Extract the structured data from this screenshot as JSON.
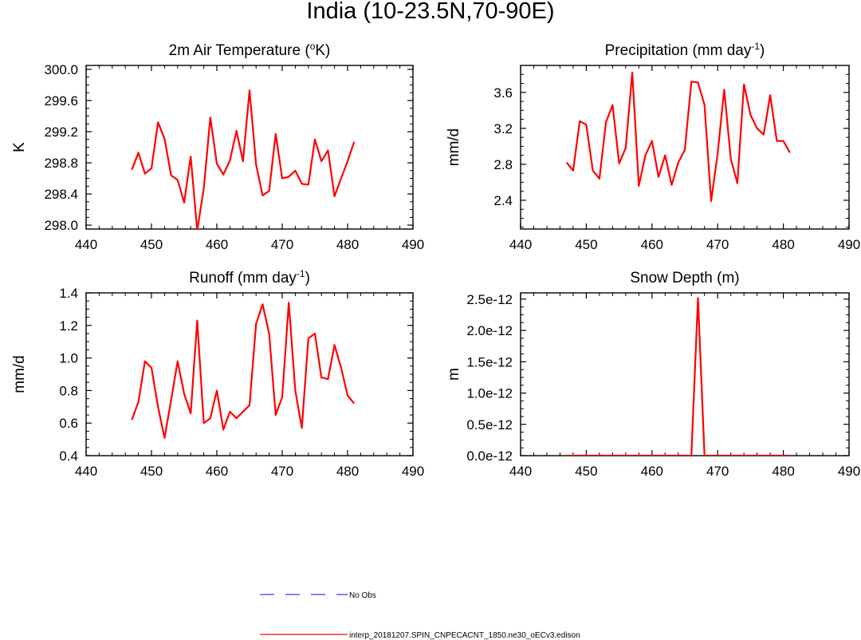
{
  "figure": {
    "title": "India (10-23.5N,70-90E)"
  },
  "legend": {
    "entries": [
      {
        "label": "No Obs",
        "color": "#3a3aff",
        "style": "dashed"
      },
      {
        "label": "interp_20181207.SPIN_CNPECACNT_1850.ne30_oECv3.edison",
        "color": "#ff0000",
        "style": "solid"
      }
    ]
  },
  "chart_data": [
    {
      "type": "line",
      "title_parts": [
        "2m Air Temperature (",
        "o",
        "K)"
      ],
      "ylabel": "K",
      "xlim": [
        440,
        490
      ],
      "xticks": [
        440,
        450,
        460,
        470,
        480,
        490
      ],
      "ylim": [
        297.95,
        300.05
      ],
      "yticks": [
        298.0,
        298.4,
        298.8,
        299.2,
        299.6,
        300.0
      ],
      "ytick_labels": [
        "298.0",
        "298.4",
        "298.8",
        "299.2",
        "299.6",
        "300.0"
      ],
      "x": [
        447,
        448,
        449,
        450,
        451,
        452,
        453,
        454,
        455,
        456,
        457,
        458,
        459,
        460,
        461,
        462,
        463,
        464,
        465,
        466,
        467,
        468,
        469,
        470,
        471,
        472,
        473,
        474,
        475,
        476,
        477,
        478,
        479,
        480,
        481
      ],
      "series": [
        {
          "name": "interp_20181207.SPIN_CNPECACNT_1850.ne30_oECv3.edison",
          "color": "#ff0000",
          "values": [
            298.71,
            298.93,
            298.66,
            298.73,
            299.32,
            299.11,
            298.64,
            298.58,
            298.29,
            298.88,
            297.93,
            298.47,
            299.38,
            298.79,
            298.65,
            298.83,
            299.21,
            298.82,
            299.73,
            298.78,
            298.38,
            298.44,
            299.17,
            298.6,
            298.62,
            298.7,
            298.53,
            298.52,
            299.1,
            298.82,
            298.96,
            298.37,
            298.6,
            298.82,
            299.07
          ]
        }
      ]
    },
    {
      "type": "line",
      "title_parts": [
        "Precipitation (mm day",
        "-1",
        ")"
      ],
      "ylabel": "mm/d",
      "xlim": [
        440,
        490
      ],
      "xticks": [
        440,
        450,
        460,
        470,
        480,
        490
      ],
      "ylim": [
        2.08,
        3.9
      ],
      "yticks": [
        2.4,
        2.8,
        3.2,
        3.6
      ],
      "ytick_labels": [
        "2.4",
        "2.8",
        "3.2",
        "3.6"
      ],
      "x": [
        447,
        448,
        449,
        450,
        451,
        452,
        453,
        454,
        455,
        456,
        457,
        458,
        459,
        460,
        461,
        462,
        463,
        464,
        465,
        466,
        467,
        468,
        469,
        470,
        471,
        472,
        473,
        474,
        475,
        476,
        477,
        478,
        479,
        480,
        481
      ],
      "series": [
        {
          "name": "interp_20181207.SPIN_CNPECACNT_1850.ne30_oECv3.edison",
          "color": "#ff0000",
          "values": [
            2.82,
            2.73,
            3.28,
            3.24,
            2.73,
            2.64,
            3.27,
            3.46,
            2.81,
            2.98,
            3.82,
            2.56,
            2.9,
            3.06,
            2.66,
            2.9,
            2.57,
            2.82,
            2.96,
            3.72,
            3.71,
            3.46,
            2.39,
            2.92,
            3.63,
            2.86,
            2.59,
            3.69,
            3.35,
            3.2,
            3.13,
            3.57,
            3.06,
            3.06,
            2.93
          ]
        }
      ]
    },
    {
      "type": "line",
      "title_parts": [
        "Runoff (mm day",
        "-1",
        ")"
      ],
      "ylabel": "mm/d",
      "xlim": [
        440,
        490
      ],
      "xticks": [
        440,
        450,
        460,
        470,
        480,
        490
      ],
      "ylim": [
        0.4,
        1.4
      ],
      "yticks": [
        0.4,
        0.6,
        0.8,
        1.0,
        1.2,
        1.4
      ],
      "ytick_labels": [
        "0.4",
        "0.6",
        "0.8",
        "1.0",
        "1.2",
        "1.4"
      ],
      "x": [
        447,
        448,
        449,
        450,
        451,
        452,
        453,
        454,
        455,
        456,
        457,
        458,
        459,
        460,
        461,
        462,
        463,
        464,
        465,
        466,
        467,
        468,
        469,
        470,
        471,
        472,
        473,
        474,
        475,
        476,
        477,
        478,
        479,
        480,
        481
      ],
      "series": [
        {
          "name": "interp_20181207.SPIN_CNPECACNT_1850.ne30_oECv3.edison",
          "color": "#ff0000",
          "values": [
            0.62,
            0.73,
            0.98,
            0.94,
            0.7,
            0.51,
            0.74,
            0.98,
            0.78,
            0.66,
            1.23,
            0.6,
            0.63,
            0.8,
            0.56,
            0.67,
            0.63,
            0.67,
            0.71,
            1.21,
            1.33,
            1.15,
            0.65,
            0.76,
            1.34,
            0.8,
            0.57,
            1.12,
            1.15,
            0.88,
            0.87,
            1.08,
            0.94,
            0.77,
            0.72
          ]
        }
      ]
    },
    {
      "type": "line",
      "title_parts": [
        "Snow Depth (m)"
      ],
      "ylabel": "m",
      "xlim": [
        440,
        490
      ],
      "xticks": [
        440,
        450,
        460,
        470,
        480,
        490
      ],
      "ylim": [
        0,
        2.6e-12
      ],
      "yticks": [
        0,
        5e-13,
        1e-12,
        1.5e-12,
        2e-12,
        2.5e-12
      ],
      "ytick_labels": [
        "0.0e-12",
        "0.5e-12",
        "1.0e-12",
        "1.5e-12",
        "2.0e-12",
        "2.5e-12"
      ],
      "x": [
        447,
        448,
        449,
        450,
        451,
        452,
        453,
        454,
        455,
        456,
        457,
        458,
        459,
        460,
        461,
        462,
        463,
        464,
        465,
        466,
        467,
        468,
        469,
        470,
        471,
        472,
        473,
        474,
        475,
        476,
        477,
        478,
        479,
        480,
        481
      ],
      "series": [
        {
          "name": "interp_20181207.SPIN_CNPECACNT_1850.ne30_oECv3.edison",
          "color": "#ff0000",
          "values": [
            0,
            0,
            0,
            0,
            0,
            0,
            0,
            0,
            0,
            0,
            0,
            0,
            0,
            0,
            0,
            0,
            0,
            0,
            0,
            0,
            2.52e-12,
            0,
            0,
            0,
            0,
            0,
            0,
            0,
            0,
            0,
            0,
            0,
            0,
            0,
            0
          ]
        }
      ]
    }
  ]
}
